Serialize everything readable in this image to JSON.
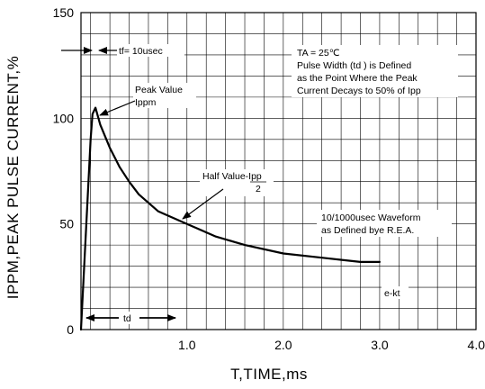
{
  "chart_data": {
    "type": "line",
    "title": "",
    "xlabel": "T,TIME,ms",
    "ylabel": "IPPM,PEAK PULSE CURRENT,%",
    "xlim": [
      -0.1,
      4.0
    ],
    "ylim": [
      0,
      150
    ],
    "x_ticks": [
      "1.0",
      "2.0",
      "3.0",
      "4.0"
    ],
    "y_ticks": [
      "0",
      "50",
      "100",
      "150"
    ],
    "grid": true,
    "series": [
      {
        "x": [
          -0.1,
          0.0,
          0.02,
          0.05,
          0.1,
          0.2,
          0.3,
          0.4,
          0.5,
          0.7,
          1.0,
          1.3,
          1.6,
          2.0,
          2.4,
          2.8,
          3.0
        ],
        "y": [
          0,
          90,
          102,
          105,
          97,
          86,
          77,
          70,
          64,
          56,
          50,
          44,
          40,
          36,
          34,
          32,
          32
        ]
      }
    ],
    "annotations": {
      "tf": "tf= 10usec",
      "conditions_line1": "TA = 25℃",
      "conditions_line2": "Pulse Width (td ) is Defined",
      "conditions_line3": "as the Point Where the Peak",
      "conditions_line4": "Current Decays to 50% of Ipp",
      "peak_line1": "Peak Value",
      "peak_line2": "Ippm",
      "half_line1": "Half Value-Ipp",
      "half_line2": "2",
      "waveform_line1": "10/1000usec Waveform",
      "waveform_line2": "as Defined bye R.E.A.",
      "ekt": "e-kt",
      "td": "td"
    },
    "colors": {
      "line": "#000000",
      "grid": "#000000",
      "background": "#ffffff"
    }
  }
}
